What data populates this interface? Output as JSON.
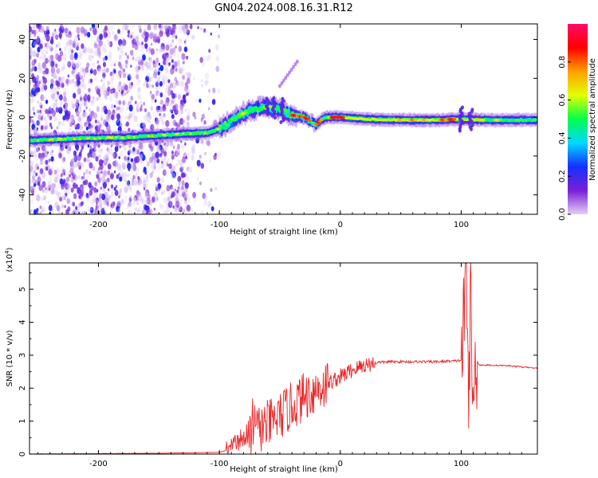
{
  "title": "GN04.2024.008.16.31.R12",
  "chart_data": [
    {
      "type": "heatmap",
      "xlabel": "Height of straight line (km)",
      "ylabel": "Frequency (Hz)",
      "xlim": [
        -257,
        163
      ],
      "ylim": [
        -50,
        48
      ],
      "xticks": [
        -200,
        -100,
        0,
        100
      ],
      "yticks": [
        -40,
        -20,
        0,
        20,
        40
      ],
      "colorbar": {
        "label": "Normalized spectral amplitude",
        "range": [
          0.0,
          1.0
        ],
        "ticks": [
          "0.0",
          "0.2",
          "0.4",
          "0.6",
          "0.8"
        ],
        "colormap": [
          "#e2d0f6",
          "#7a1fd6",
          "#1530ff",
          "#00d8ff",
          "#00ff4a",
          "#e4ff00",
          "#ffa000",
          "#ff0000",
          "#ff0a6a"
        ]
      },
      "ridge_frequency": {
        "x": [
          -257,
          -220,
          -180,
          -140,
          -110,
          -100,
          -90,
          -80,
          -70,
          -60,
          -50,
          -40,
          -30,
          -20,
          -15,
          -10,
          0,
          20,
          50,
          80,
          100,
          120,
          163
        ],
        "y": [
          -12,
          -11,
          -10.5,
          -9,
          -8,
          -6,
          -2,
          2,
          4,
          5.5,
          4,
          1,
          0,
          -4,
          -1,
          0,
          0,
          -1,
          -1.5,
          -1.5,
          -1,
          -1.5,
          -1.5
        ]
      }
    },
    {
      "type": "line",
      "xlabel": "Height of straight line (km)",
      "ylabel": "SNR (10 * v/v)",
      "y_multiplier": "(x10^4)",
      "y_multiplier_base": "(x10",
      "y_multiplier_exp": "4",
      "xlim": [
        -257,
        163
      ],
      "ylim": [
        0,
        5.8
      ],
      "xticks": [
        -200,
        -100,
        0,
        100
      ],
      "yticks": [
        0,
        1,
        2,
        3,
        4,
        5
      ],
      "series": [
        {
          "color": "#e8282a",
          "x": [
            -257,
            -150,
            -100,
            -95,
            -90,
            -85,
            -80,
            -75,
            -70,
            -65,
            -60,
            -55,
            -50,
            -45,
            -40,
            -35,
            -30,
            -25,
            -20,
            -15,
            -10,
            -5,
            0,
            5,
            10,
            20,
            30,
            40,
            50,
            60,
            70,
            80,
            90,
            95,
            100,
            102,
            104,
            106,
            108,
            110,
            112,
            115,
            120,
            140,
            163
          ],
          "y": [
            0,
            0.02,
            0.05,
            0.1,
            0.2,
            0.35,
            0.5,
            0.6,
            0.7,
            0.8,
            0.9,
            1.0,
            1.15,
            1.3,
            1.45,
            1.6,
            1.75,
            1.85,
            1.95,
            2.05,
            2.15,
            2.25,
            2.35,
            2.45,
            2.55,
            2.7,
            2.78,
            2.8,
            2.8,
            2.8,
            2.8,
            2.8,
            2.82,
            2.82,
            2.85,
            3.8,
            5.6,
            2.2,
            4.5,
            1.0,
            2.9,
            2.7,
            2.7,
            2.68,
            2.6
          ]
        }
      ]
    }
  ]
}
